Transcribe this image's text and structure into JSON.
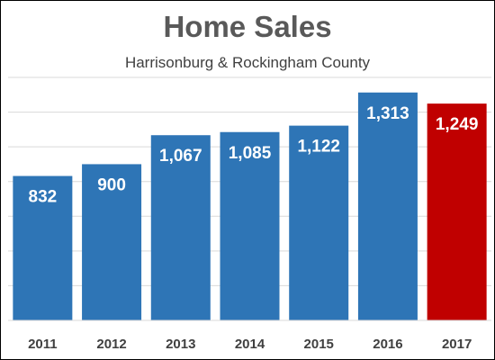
{
  "chart_data": {
    "type": "bar",
    "title": "Home Sales",
    "subtitle": "Harrisonburg & Rockingham County",
    "categories": [
      "2011",
      "2012",
      "2013",
      "2014",
      "2015",
      "2016",
      "2017"
    ],
    "values": [
      832,
      900,
      1067,
      1085,
      1122,
      1313,
      1249
    ],
    "value_labels": [
      "832",
      "900",
      "1,067",
      "1,085",
      "1,122",
      "1,313",
      "1,249"
    ],
    "xlabel": "",
    "ylabel": "",
    "ylim": [
      0,
      1400
    ],
    "grid": true,
    "y_axis_tick_labels_shown": false,
    "colors": {
      "default_bar": "#2e75b6",
      "highlight_bar": "#c00000",
      "highlight_index": 6,
      "grid": "#d9d9d9",
      "value_label": "#ffffff",
      "tick_label": "#404040"
    }
  }
}
